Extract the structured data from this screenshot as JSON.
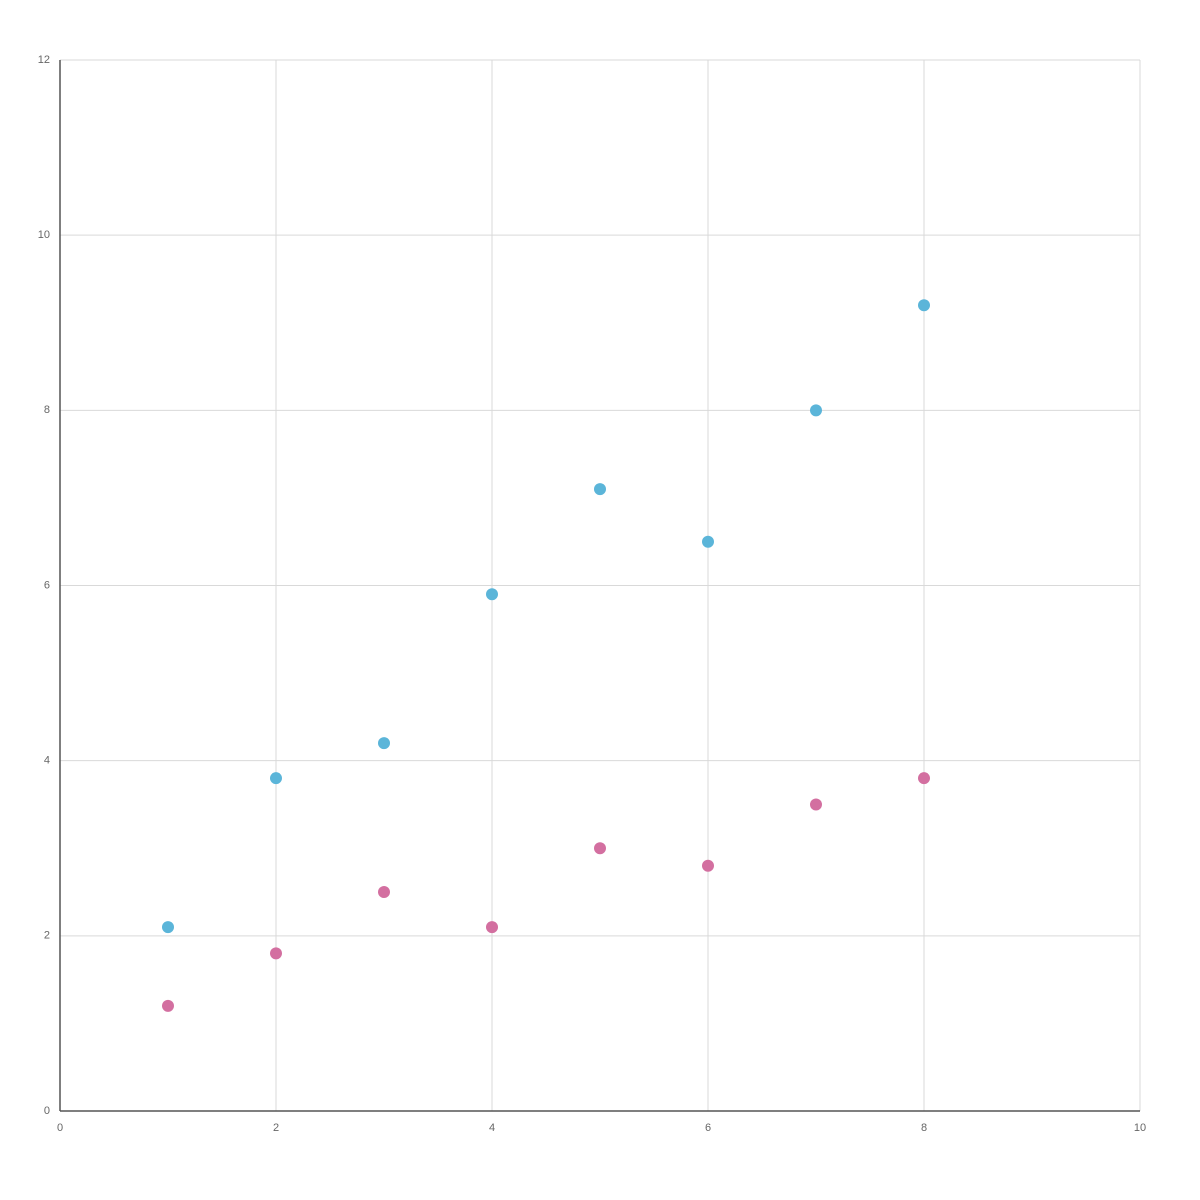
{
  "chart_data": {
    "type": "scatter",
    "x": [
      1,
      2,
      3,
      4,
      5,
      6,
      7,
      8
    ],
    "series": [
      {
        "color": "#5bb5d9",
        "values": [
          2.1,
          3.8,
          4.2,
          5.9,
          7.1,
          6.5,
          8.0,
          9.2
        ]
      },
      {
        "color": "#d36fa0",
        "values": [
          1.2,
          1.8,
          2.5,
          2.1,
          3.0,
          2.8,
          3.5,
          3.8
        ]
      }
    ],
    "xlim": [
      0,
      10
    ],
    "xticks": [
      0,
      2,
      4,
      6,
      8,
      10
    ],
    "ylim": [
      0,
      12
    ],
    "yticks": [
      0,
      2,
      4,
      6,
      8,
      10,
      12
    ],
    "grid": true
  }
}
